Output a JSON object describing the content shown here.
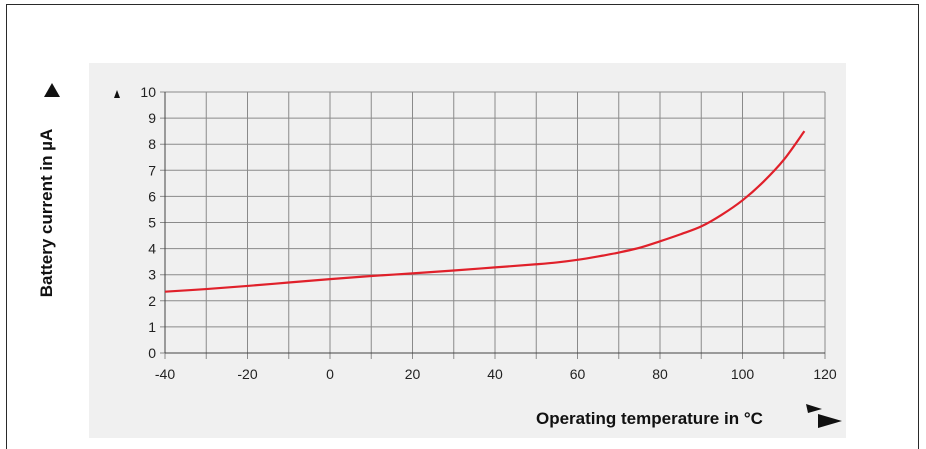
{
  "chart_data": {
    "type": "line",
    "title": "",
    "xlabel": "Operating temperature in °C",
    "ylabel": "Battery current in µA",
    "xlim": [
      -40,
      120
    ],
    "ylim": [
      0,
      10
    ],
    "x_ticks": [
      -40,
      -20,
      0,
      20,
      40,
      60,
      80,
      100,
      120
    ],
    "x_tick_labels": [
      "-40",
      "-20",
      "0",
      "20",
      "40",
      "60",
      "80",
      "100",
      "120"
    ],
    "y_ticks": [
      0,
      1,
      2,
      3,
      4,
      5,
      6,
      7,
      8,
      9,
      10
    ],
    "y_tick_labels": [
      "0",
      "1",
      "2",
      "3",
      "4",
      "5",
      "6",
      "7",
      "8",
      "9",
      "10"
    ],
    "grid": true,
    "grid_x_step": 10,
    "grid_y_step": 1,
    "series": [
      {
        "color": "#e0202a",
        "x": [
          -40,
          -30,
          -20,
          -10,
          0,
          10,
          20,
          30,
          40,
          50,
          55,
          60,
          65,
          70,
          75,
          80,
          85,
          90,
          95,
          100,
          105,
          110,
          115
        ],
        "y": [
          2.35,
          2.45,
          2.57,
          2.7,
          2.83,
          2.95,
          3.05,
          3.16,
          3.28,
          3.4,
          3.47,
          3.57,
          3.7,
          3.85,
          4.03,
          4.28,
          4.55,
          4.85,
          5.3,
          5.85,
          6.55,
          7.4,
          8.5
        ]
      }
    ]
  }
}
